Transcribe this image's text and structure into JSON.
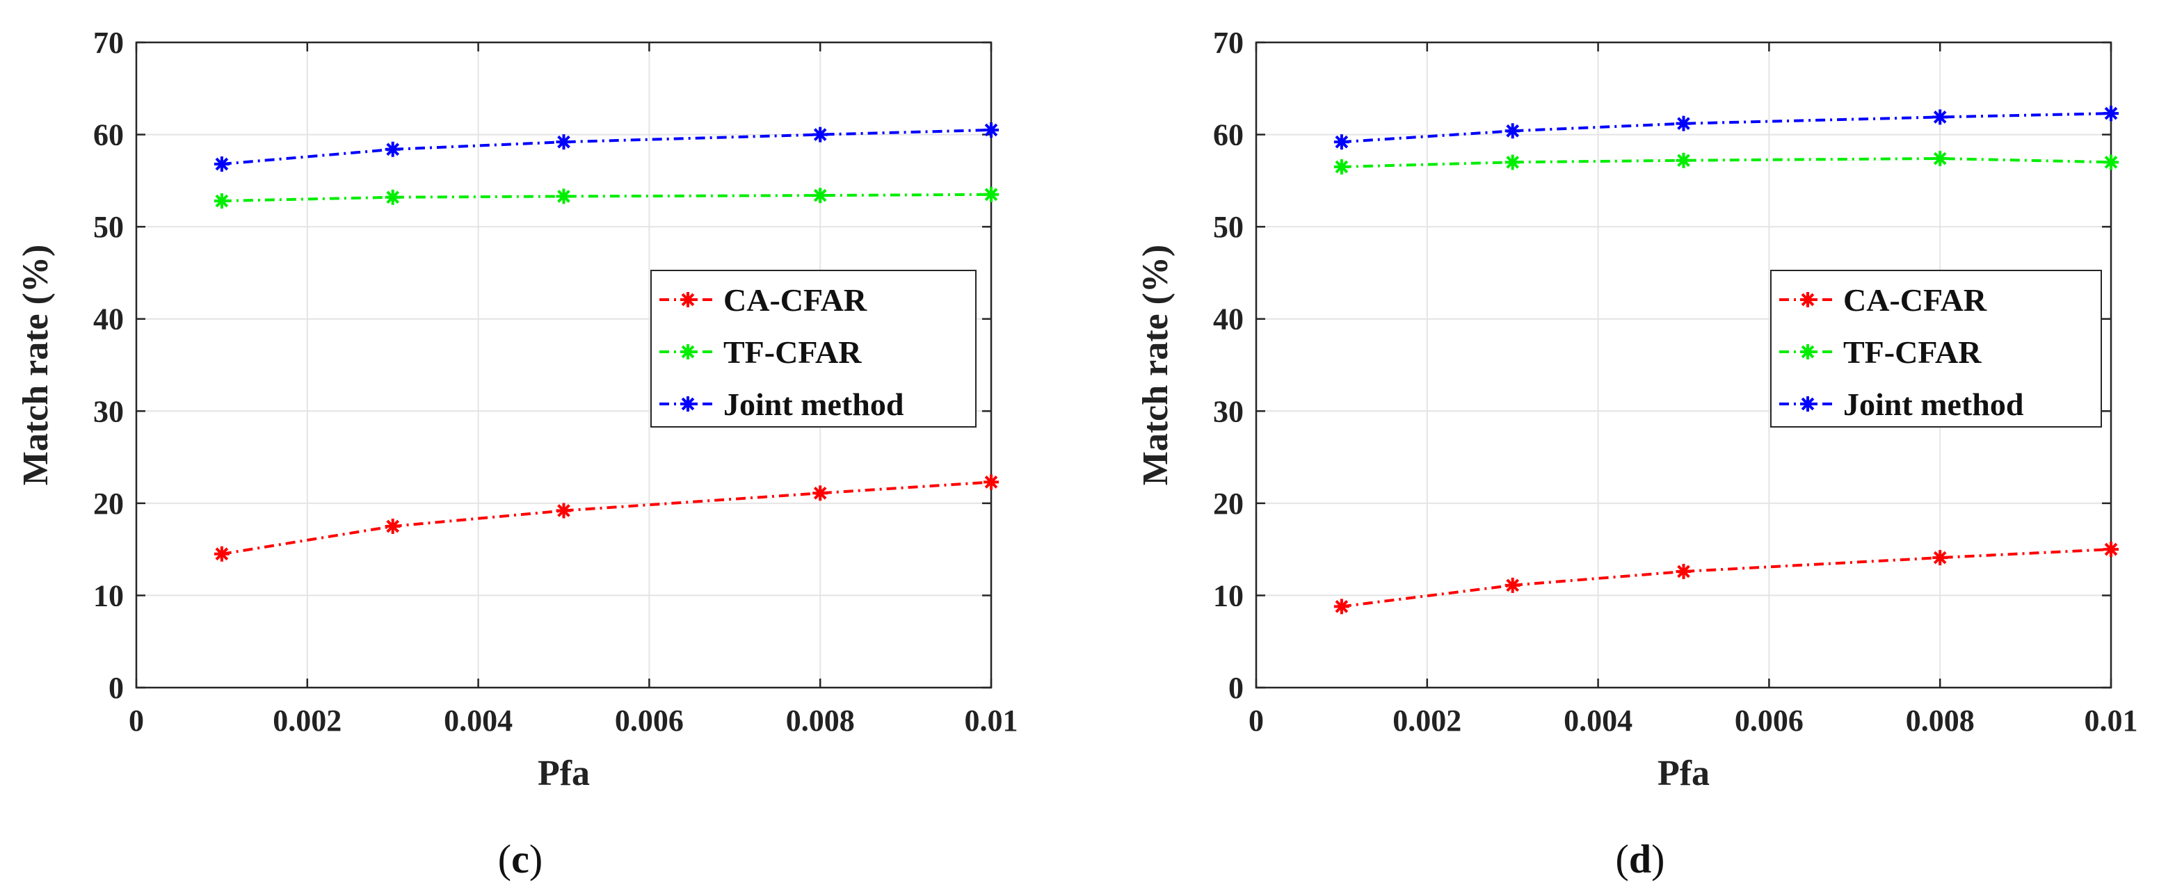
{
  "chart_data": [
    {
      "type": "line",
      "caption": "c",
      "xlabel": "Pfa",
      "ylabel": "Match rate (%)",
      "xlim": [
        0,
        0.01
      ],
      "ylim": [
        0,
        70
      ],
      "xticks": [
        "0",
        "0.002",
        "0.004",
        "0.006",
        "0.008",
        "0.01"
      ],
      "yticks": [
        "0",
        "10",
        "20",
        "30",
        "40",
        "50",
        "60",
        "70"
      ],
      "grid": true,
      "legend_position": "center-right",
      "x": [
        0.001,
        0.003,
        0.005,
        0.008,
        0.01
      ],
      "series": [
        {
          "name": "CA-CFAR",
          "color": "#ff0000",
          "values": [
            14.5,
            17.5,
            19.2,
            21.1,
            22.3
          ]
        },
        {
          "name": "TF-CFAR",
          "color": "#00ee00",
          "values": [
            52.8,
            53.2,
            53.3,
            53.4,
            53.5
          ]
        },
        {
          "name": "Joint method",
          "color": "#0000ff",
          "values": [
            56.8,
            58.4,
            59.2,
            60.0,
            60.5
          ]
        }
      ]
    },
    {
      "type": "line",
      "caption": "d",
      "xlabel": "Pfa",
      "ylabel": "Match rate (%)",
      "xlim": [
        0,
        0.01
      ],
      "ylim": [
        0,
        70
      ],
      "xticks": [
        "0",
        "0.002",
        "0.004",
        "0.006",
        "0.008",
        "0.01"
      ],
      "yticks": [
        "0",
        "10",
        "20",
        "30",
        "40",
        "50",
        "60",
        "70"
      ],
      "grid": true,
      "legend_position": "center-right",
      "x": [
        0.001,
        0.003,
        0.005,
        0.008,
        0.01
      ],
      "series": [
        {
          "name": "CA-CFAR",
          "color": "#ff0000",
          "values": [
            8.8,
            11.1,
            12.6,
            14.1,
            15.0
          ]
        },
        {
          "name": "TF-CFAR",
          "color": "#00ee00",
          "values": [
            56.5,
            57.0,
            57.2,
            57.4,
            57.0
          ]
        },
        {
          "name": "Joint method",
          "color": "#0000ff",
          "values": [
            59.2,
            60.4,
            61.2,
            61.9,
            62.3
          ]
        }
      ]
    }
  ]
}
